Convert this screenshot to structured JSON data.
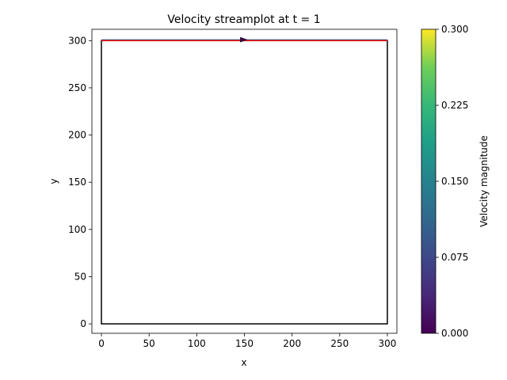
{
  "chart_data": {
    "type": "streamplot",
    "title": "Velocity streamplot at t = 1",
    "xlabel": "x",
    "ylabel": "y",
    "xlim": [
      -10,
      310
    ],
    "ylim": [
      -10,
      312
    ],
    "xticks": [
      0,
      50,
      100,
      150,
      200,
      250,
      300
    ],
    "yticks": [
      0,
      50,
      100,
      150,
      200,
      250,
      300
    ],
    "domain_box": {
      "x": [
        0,
        300
      ],
      "y": [
        0,
        300
      ],
      "color": "#000000"
    },
    "lid_line": {
      "x": [
        0,
        300
      ],
      "y": 300,
      "color": "#ff0000"
    },
    "streamline": {
      "x": [
        0,
        300
      ],
      "y": 301,
      "color": "#31688e",
      "arrow_x": 150
    },
    "colorbar": {
      "label": "Velocity magnitude",
      "range": [
        0,
        0.3
      ],
      "ticks": [
        "0.000",
        "0.075",
        "0.150",
        "0.225",
        "0.300"
      ],
      "colormap": "viridis"
    }
  }
}
